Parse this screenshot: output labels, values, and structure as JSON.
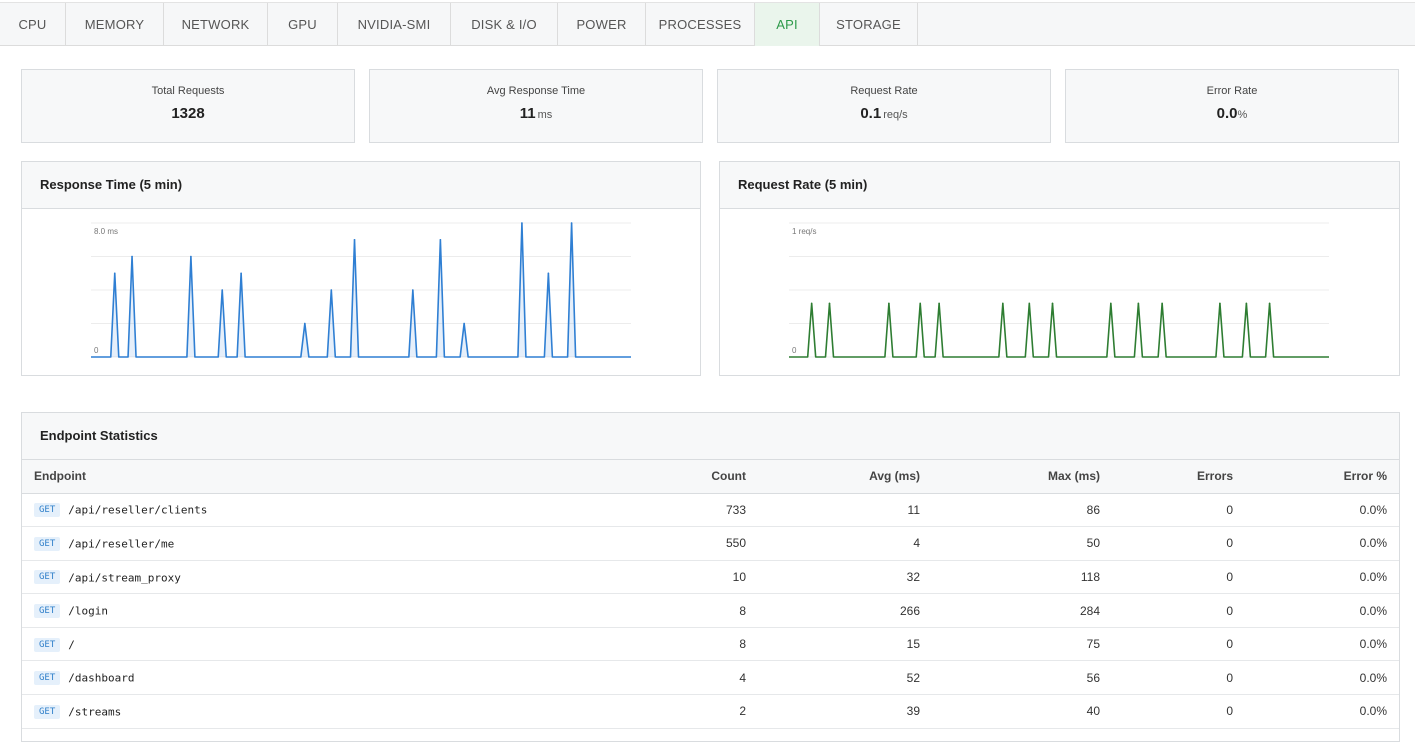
{
  "tabs": [
    {
      "label": "CPU",
      "active": false
    },
    {
      "label": "MEMORY",
      "active": false
    },
    {
      "label": "NETWORK",
      "active": false
    },
    {
      "label": "GPU",
      "active": false
    },
    {
      "label": "NVIDIA-SMI",
      "active": false
    },
    {
      "label": "DISK & I/O",
      "active": false
    },
    {
      "label": "POWER",
      "active": false
    },
    {
      "label": "PROCESSES",
      "active": false
    },
    {
      "label": "API",
      "active": true
    },
    {
      "label": "STORAGE",
      "active": false
    }
  ],
  "stats": {
    "total_requests": {
      "label": "Total Requests",
      "value": "1328",
      "unit": ""
    },
    "avg_response_time": {
      "label": "Avg Response Time",
      "value": "11",
      "unit": "ms"
    },
    "request_rate": {
      "label": "Request Rate",
      "value": "0.1",
      "unit": "req/s"
    },
    "error_rate": {
      "label": "Error Rate",
      "value": "0.0",
      "unit": "%"
    }
  },
  "chart_data": [
    {
      "type": "area",
      "title": "Response Time (5 min)",
      "ytop_label": "8.0 ms",
      "ybottom_label": "0",
      "ylim": [
        0,
        8
      ],
      "color": "#2f7fd3",
      "spikes": [
        {
          "t": 0.044,
          "v": 5
        },
        {
          "t": 0.076,
          "v": 6
        },
        {
          "t": 0.185,
          "v": 6
        },
        {
          "t": 0.243,
          "v": 4
        },
        {
          "t": 0.278,
          "v": 5
        },
        {
          "t": 0.396,
          "v": 2
        },
        {
          "t": 0.445,
          "v": 4
        },
        {
          "t": 0.488,
          "v": 7
        },
        {
          "t": 0.596,
          "v": 4
        },
        {
          "t": 0.647,
          "v": 7
        },
        {
          "t": 0.691,
          "v": 2
        },
        {
          "t": 0.798,
          "v": 8
        },
        {
          "t": 0.847,
          "v": 5
        },
        {
          "t": 0.89,
          "v": 8
        }
      ]
    },
    {
      "type": "line",
      "title": "Request Rate (5 min)",
      "ytop_label": "1 req/s",
      "ybottom_label": "0",
      "ylim": [
        0,
        1
      ],
      "color": "#2e7d32",
      "spikes": [
        {
          "t": 0.042,
          "v": 0.4
        },
        {
          "t": 0.075,
          "v": 0.4
        },
        {
          "t": 0.185,
          "v": 0.4
        },
        {
          "t": 0.243,
          "v": 0.4
        },
        {
          "t": 0.278,
          "v": 0.4
        },
        {
          "t": 0.396,
          "v": 0.4
        },
        {
          "t": 0.445,
          "v": 0.4
        },
        {
          "t": 0.488,
          "v": 0.4
        },
        {
          "t": 0.596,
          "v": 0.4
        },
        {
          "t": 0.647,
          "v": 0.4
        },
        {
          "t": 0.691,
          "v": 0.4
        },
        {
          "t": 0.798,
          "v": 0.4
        },
        {
          "t": 0.847,
          "v": 0.4
        },
        {
          "t": 0.89,
          "v": 0.4
        }
      ]
    }
  ],
  "endpoints": {
    "title": "Endpoint Statistics",
    "headers": {
      "endpoint": "Endpoint",
      "count": "Count",
      "avg": "Avg (ms)",
      "max": "Max (ms)",
      "errors": "Errors",
      "error_pct": "Error %"
    },
    "rows": [
      {
        "method": "GET",
        "path": "/api/reseller/clients",
        "count": "733",
        "avg": "11",
        "max": "86",
        "errors": "0",
        "error_pct": "0.0%"
      },
      {
        "method": "GET",
        "path": "/api/reseller/me",
        "count": "550",
        "avg": "4",
        "max": "50",
        "errors": "0",
        "error_pct": "0.0%"
      },
      {
        "method": "GET",
        "path": "/api/stream_proxy",
        "count": "10",
        "avg": "32",
        "max": "118",
        "errors": "0",
        "error_pct": "0.0%"
      },
      {
        "method": "GET",
        "path": "/login",
        "count": "8",
        "avg": "266",
        "max": "284",
        "errors": "0",
        "error_pct": "0.0%"
      },
      {
        "method": "GET",
        "path": "/",
        "count": "8",
        "avg": "15",
        "max": "75",
        "errors": "0",
        "error_pct": "0.0%"
      },
      {
        "method": "GET",
        "path": "/dashboard",
        "count": "4",
        "avg": "52",
        "max": "56",
        "errors": "0",
        "error_pct": "0.0%"
      },
      {
        "method": "GET",
        "path": "/streams",
        "count": "2",
        "avg": "39",
        "max": "40",
        "errors": "0",
        "error_pct": "0.0%"
      }
    ]
  }
}
